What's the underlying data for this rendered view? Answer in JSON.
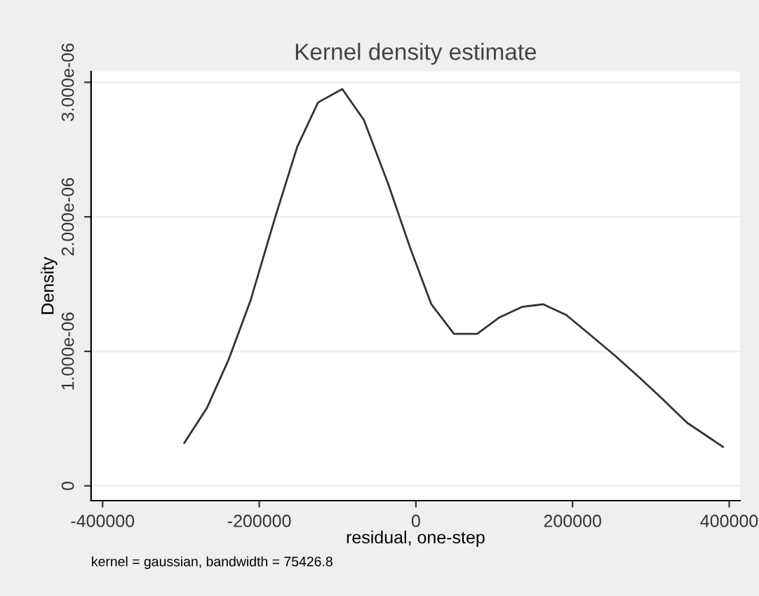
{
  "chart_data": {
    "type": "line",
    "title": "Kernel density estimate",
    "xlabel": "residual, one-step",
    "ylabel": "Density",
    "annotations": [
      "kernel = gaussian, bandwidth = 75426.8"
    ],
    "x": [
      -295600,
      -266700,
      -239000,
      -211000,
      -180000,
      -151500,
      -125000,
      -94000,
      -66500,
      -35700,
      -8000,
      19700,
      48600,
      78200,
      106000,
      135500,
      162600,
      192000,
      223000,
      253700,
      284500,
      315000,
      346000,
      392000
    ],
    "series": [
      {
        "color": "#333333",
        "values": [
          3.2e-07,
          5.8e-07,
          9.4e-07,
          1.38e-06,
          1.99e-06,
          2.52e-06,
          2.85e-06,
          2.95e-06,
          2.72e-06,
          2.25e-06,
          1.78e-06,
          1.35e-06,
          1.13e-06,
          1.13e-06,
          1.25e-06,
          1.33e-06,
          1.35e-06,
          1.27e-06,
          1.12e-06,
          9.7e-07,
          8.1e-07,
          6.45e-07,
          4.7e-07,
          2.9e-07
        ]
      }
    ],
    "xlim": [
      -414700,
      413800
    ],
    "xticks": [
      -400000,
      -200000,
      0,
      200000,
      400000
    ],
    "ylim": [
      -1.1e-07,
      3.08e-06
    ],
    "yticks": [
      0,
      {
        "value": 1e-06,
        "label": "1.000e-06"
      },
      {
        "value": 2e-06,
        "label": "2.000e-06"
      },
      {
        "value": 3e-06,
        "label": "3.000e-06"
      }
    ],
    "grid": "y",
    "legend": false,
    "marker": "none",
    "line_style": "solid"
  }
}
